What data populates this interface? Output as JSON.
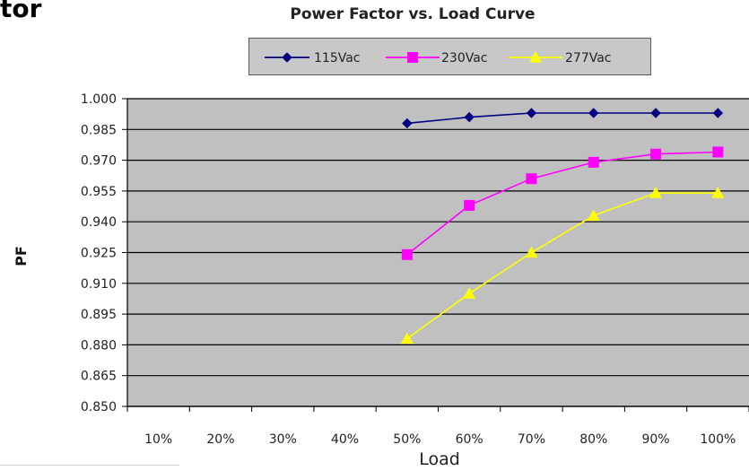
{
  "page": {
    "title_fragment": "tor"
  },
  "chart_data": {
    "type": "line",
    "title": "Power Factor vs. Load Curve",
    "xlabel": "Load",
    "ylabel": "PF",
    "categories": [
      "10%",
      "20%",
      "30%",
      "40%",
      "50%",
      "60%",
      "70%",
      "80%",
      "90%",
      "100%"
    ],
    "ylim": [
      0.85,
      1.0
    ],
    "yticks": [
      "1.000",
      "0.985",
      "0.970",
      "0.955",
      "0.940",
      "0.925",
      "0.910",
      "0.895",
      "0.880",
      "0.865",
      "0.850"
    ],
    "grid": "horizontal",
    "legend_position": "top",
    "plot_background": "#c0c0c0",
    "series": [
      {
        "name": "115Vac",
        "color": "#000080",
        "marker": "diamond",
        "x": [
          4.5,
          5.5,
          6.5,
          7.5,
          8.5,
          9.5
        ],
        "values": [
          0.988,
          0.991,
          0.993,
          0.993,
          0.993,
          0.993
        ]
      },
      {
        "name": "230Vac",
        "color": "#ff00ff",
        "marker": "square",
        "x": [
          4.5,
          5.5,
          6.5,
          7.5,
          8.5,
          9.5
        ],
        "values": [
          0.924,
          0.948,
          0.961,
          0.969,
          0.973,
          0.974
        ]
      },
      {
        "name": "277Vac",
        "color": "#ffff00",
        "marker": "triangle",
        "x": [
          4.5,
          5.5,
          6.5,
          7.5,
          8.5,
          9.5
        ],
        "values": [
          0.883,
          0.905,
          0.925,
          0.943,
          0.954,
          0.954
        ]
      }
    ]
  }
}
